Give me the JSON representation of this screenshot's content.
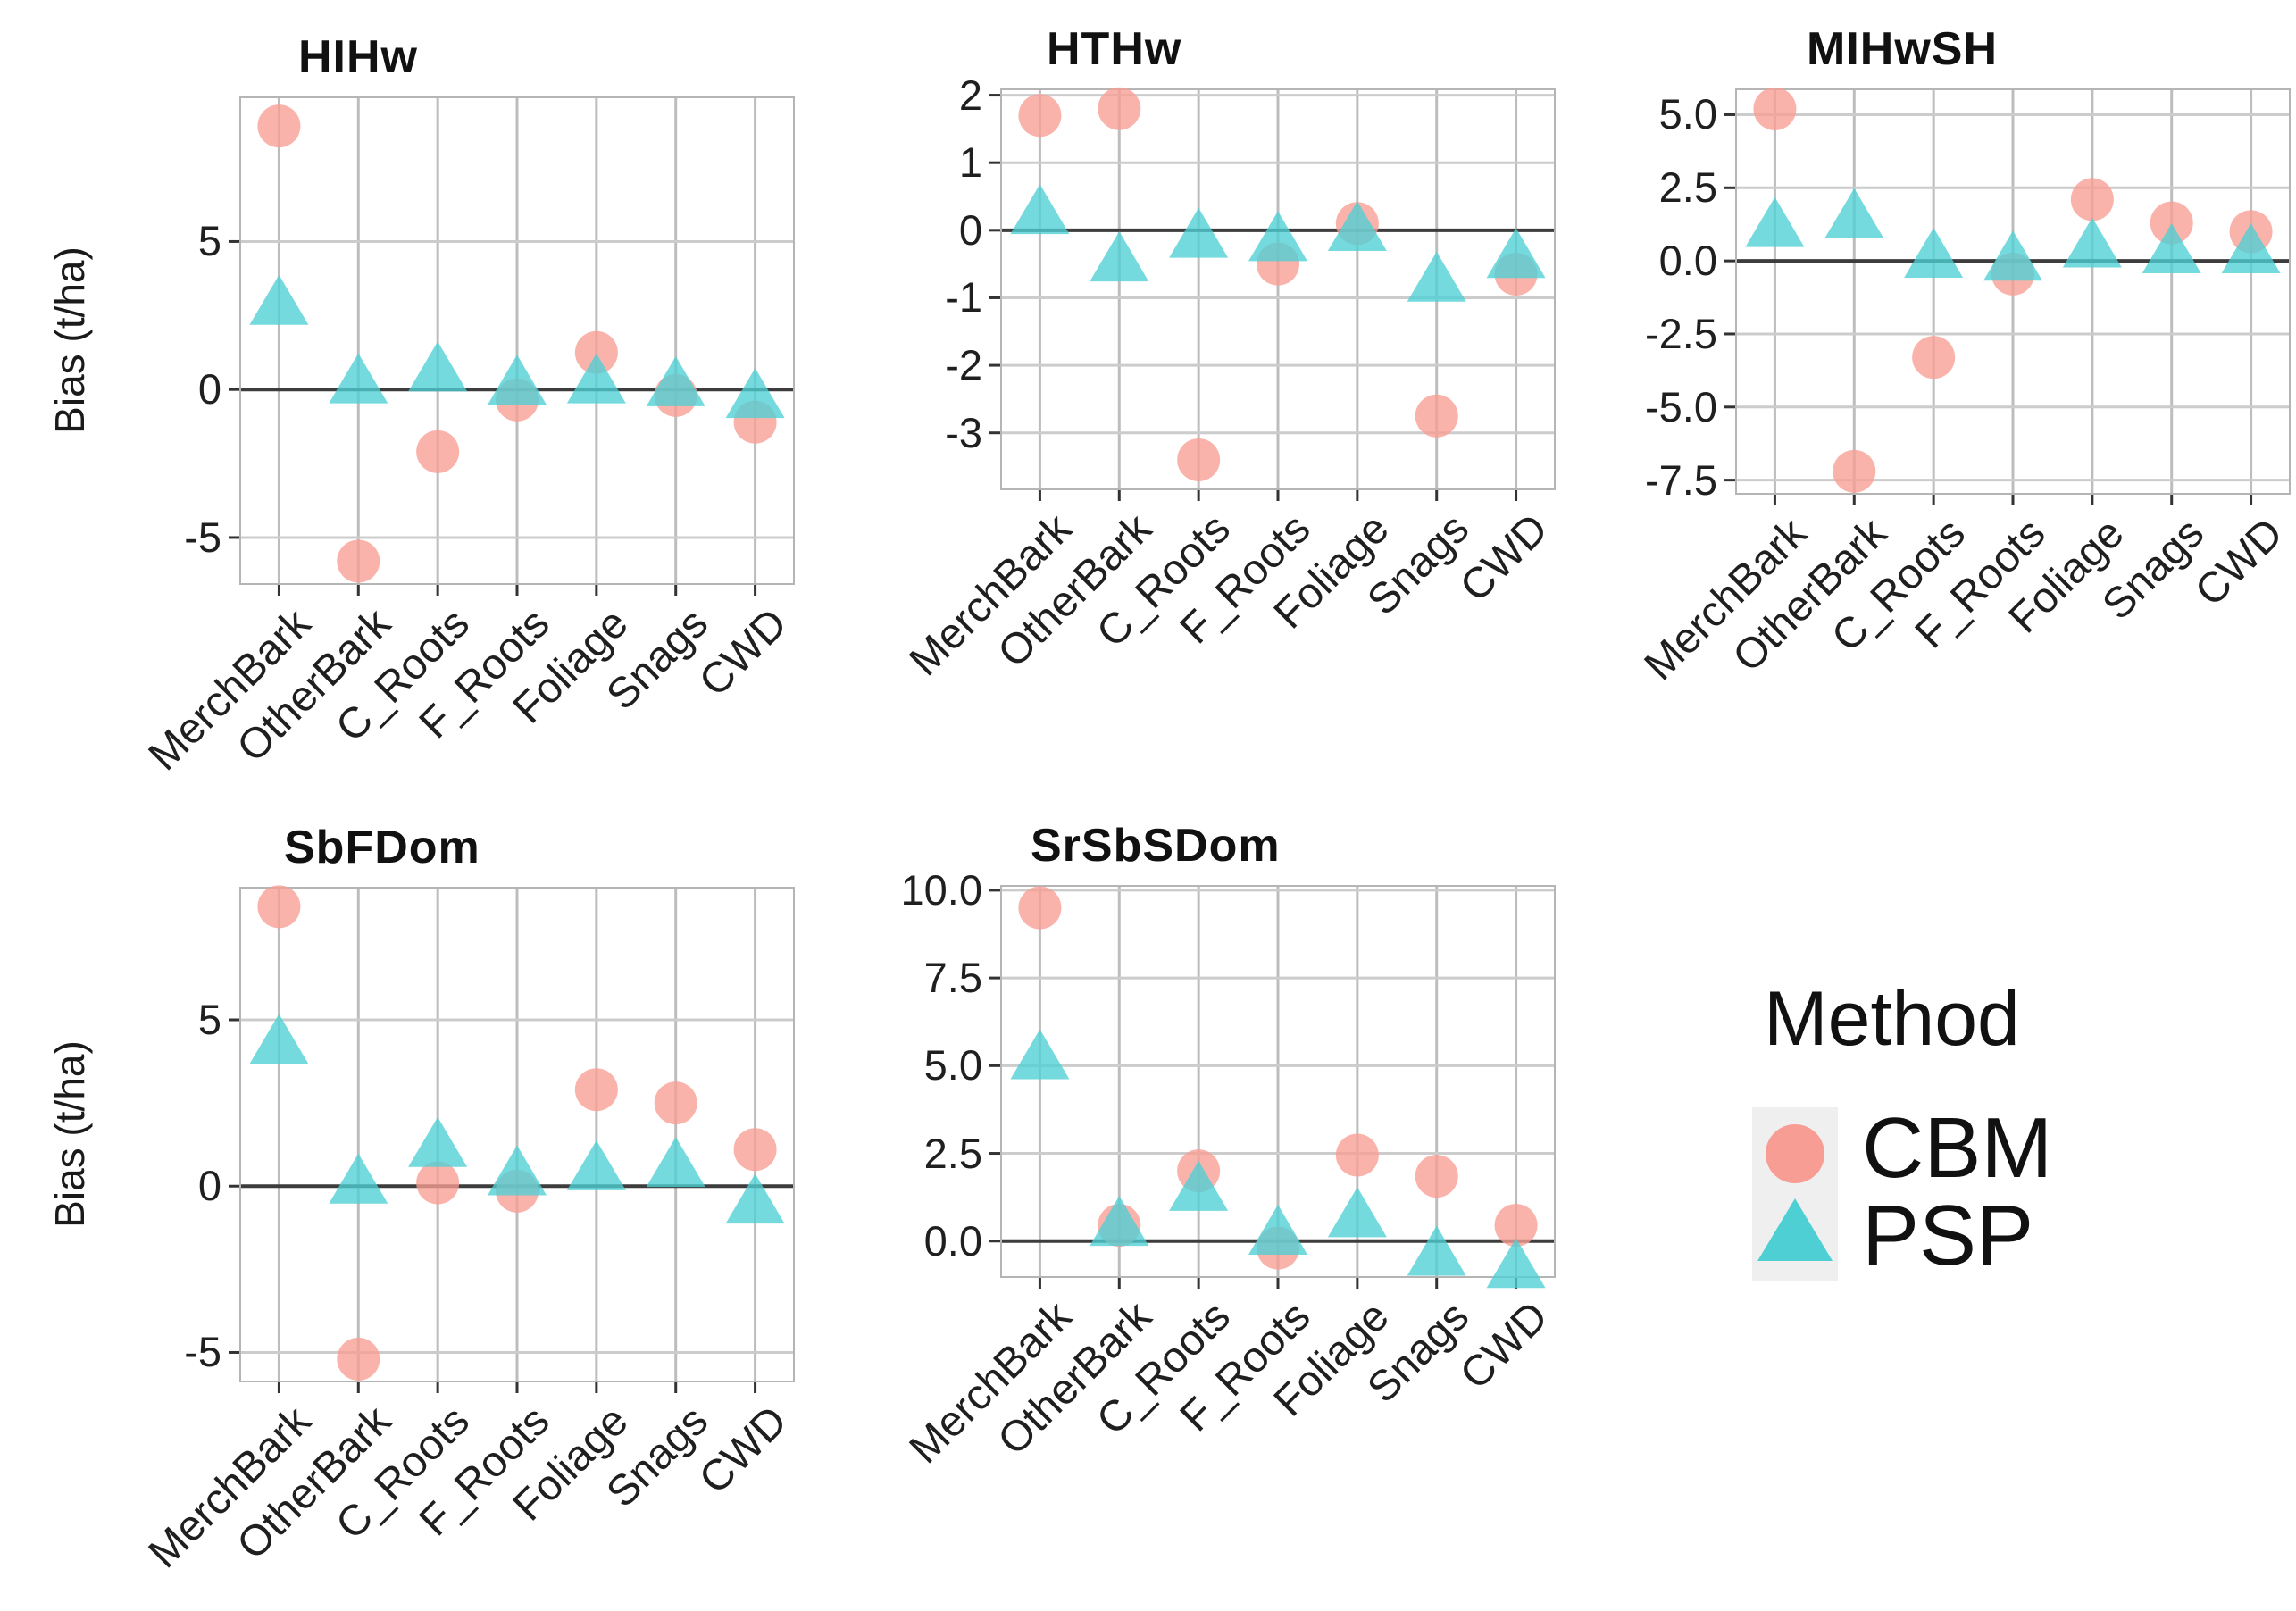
{
  "figure": {
    "y_axis_label": "Bias (t/ha)",
    "categories": [
      "MerchBark",
      "OtherBark",
      "C_Roots",
      "F_Roots",
      "Foliage",
      "Snags",
      "CWD"
    ],
    "colors": {
      "cbm": "#F89D94",
      "psp": "#4DCFD3",
      "grid_vertical": "#bdbdbd",
      "grid_horizontal": "#cccccc",
      "panel_frame": "#b5b5b5",
      "zero_line": "#3d3d3d",
      "tick_mark": "#333333",
      "text": "#1f1f1f",
      "legend_key_bg": "#efefef"
    }
  },
  "legend": {
    "title": "Method",
    "items": [
      {
        "label": "CBM",
        "marker": "circle"
      },
      {
        "label": "PSP",
        "marker": "triangle"
      }
    ]
  },
  "chart_data": [
    {
      "type": "scatter",
      "title": "HIHw",
      "xlabel": "",
      "ylabel": "Bias (t/ha)",
      "categories": [
        "MerchBark",
        "OtherBark",
        "C_Roots",
        "F_Roots",
        "Foliage",
        "Snags",
        "CWD"
      ],
      "ylim": [
        -6.6,
        9.9
      ],
      "y_ticks": [
        {
          "label": "5",
          "value": 5
        },
        {
          "label": "0",
          "value": 0
        },
        {
          "label": "-5",
          "value": -5
        }
      ],
      "zero_line": true,
      "grid": true,
      "series": [
        {
          "name": "CBM",
          "marker": "circle",
          "values": [
            8.9,
            -5.8,
            -2.1,
            -0.35,
            1.25,
            -0.2,
            -1.1
          ]
        },
        {
          "name": "PSP",
          "marker": "triangle",
          "values": [
            3.0,
            0.35,
            0.75,
            0.3,
            0.35,
            0.25,
            -0.15
          ]
        }
      ]
    },
    {
      "type": "scatter",
      "title": "HTHw",
      "xlabel": "",
      "ylabel": "",
      "categories": [
        "MerchBark",
        "OtherBark",
        "C_Roots",
        "F_Roots",
        "Foliage",
        "Snags",
        "CWD"
      ],
      "ylim": [
        -3.85,
        2.1
      ],
      "y_ticks": [
        {
          "label": "2",
          "value": 2
        },
        {
          "label": "1",
          "value": 1
        },
        {
          "label": "0",
          "value": 0
        },
        {
          "label": "-1",
          "value": -1
        },
        {
          "label": "-2",
          "value": -2
        },
        {
          "label": "-3",
          "value": -3
        }
      ],
      "zero_line": true,
      "grid": true,
      "series": [
        {
          "name": "CBM",
          "marker": "circle",
          "values": [
            1.7,
            1.8,
            -3.4,
            -0.5,
            0.1,
            -2.75,
            -0.65
          ]
        },
        {
          "name": "PSP",
          "marker": "triangle",
          "values": [
            0.3,
            -0.4,
            -0.05,
            -0.1,
            0.05,
            -0.7,
            -0.35
          ]
        }
      ]
    },
    {
      "type": "scatter",
      "title": "MIHwSH",
      "xlabel": "",
      "ylabel": "",
      "categories": [
        "MerchBark",
        "OtherBark",
        "C_Roots",
        "F_Roots",
        "Foliage",
        "Snags",
        "CWD"
      ],
      "ylim": [
        -8.0,
        5.9
      ],
      "y_ticks": [
        {
          "label": "5.0",
          "value": 5.0
        },
        {
          "label": "2.5",
          "value": 2.5
        },
        {
          "label": "0.0",
          "value": 0.0
        },
        {
          "label": "-2.5",
          "value": -2.5
        },
        {
          "label": "-5.0",
          "value": -5.0
        },
        {
          "label": "-7.5",
          "value": -7.5
        }
      ],
      "zero_line": true,
      "grid": true,
      "series": [
        {
          "name": "CBM",
          "marker": "circle",
          "values": [
            5.2,
            -7.2,
            -3.3,
            -0.45,
            2.1,
            1.3,
            1.0
          ]
        },
        {
          "name": "PSP",
          "marker": "triangle",
          "values": [
            1.3,
            1.6,
            0.25,
            0.15,
            0.6,
            0.4,
            0.4
          ]
        }
      ]
    },
    {
      "type": "scatter",
      "title": "SbFDom",
      "xlabel": "",
      "ylabel": "Bias (t/ha)",
      "categories": [
        "MerchBark",
        "OtherBark",
        "C_Roots",
        "F_Roots",
        "Foliage",
        "Snags",
        "CWD"
      ],
      "ylim": [
        -5.9,
        9.0
      ],
      "y_ticks": [
        {
          "label": "5",
          "value": 5
        },
        {
          "label": "0",
          "value": 0
        },
        {
          "label": "-5",
          "value": -5
        }
      ],
      "zero_line": true,
      "grid": true,
      "series": [
        {
          "name": "CBM",
          "marker": "circle",
          "values": [
            8.4,
            -5.2,
            0.1,
            -0.15,
            2.9,
            2.5,
            1.1
          ]
        },
        {
          "name": "PSP",
          "marker": "triangle",
          "values": [
            4.4,
            0.2,
            1.3,
            0.45,
            0.6,
            0.7,
            -0.4
          ]
        }
      ]
    },
    {
      "type": "scatter",
      "title": "SrSbSDom",
      "xlabel": "",
      "ylabel": "",
      "categories": [
        "MerchBark",
        "OtherBark",
        "C_Roots",
        "F_Roots",
        "Foliage",
        "Snags",
        "CWD"
      ],
      "ylim": [
        -1.05,
        10.15
      ],
      "y_ticks": [
        {
          "label": "10.0",
          "value": 10.0
        },
        {
          "label": "7.5",
          "value": 7.5
        },
        {
          "label": "5.0",
          "value": 5.0
        },
        {
          "label": "2.5",
          "value": 2.5
        },
        {
          "label": "0.0",
          "value": 0.0
        }
      ],
      "zero_line": true,
      "grid": true,
      "series": [
        {
          "name": "CBM",
          "marker": "circle",
          "values": [
            9.5,
            0.45,
            2.0,
            -0.2,
            2.45,
            1.85,
            0.45
          ]
        },
        {
          "name": "PSP",
          "marker": "triangle",
          "values": [
            5.3,
            0.55,
            1.55,
            0.3,
            0.8,
            -0.3,
            -0.65
          ]
        }
      ]
    }
  ]
}
